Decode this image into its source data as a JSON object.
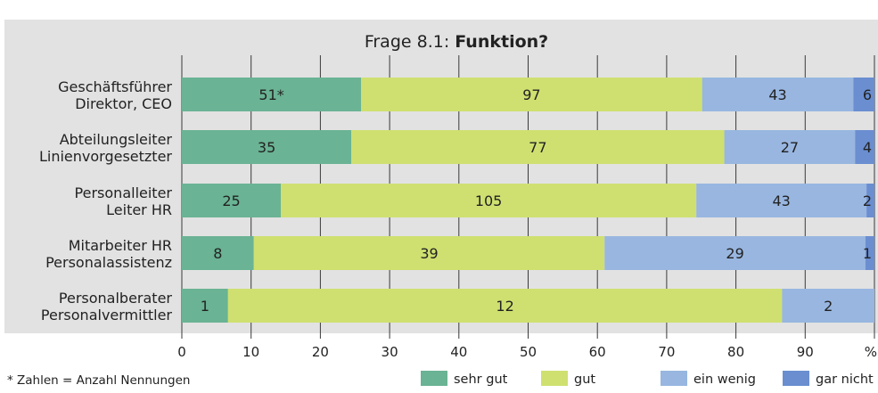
{
  "chart_data": {
    "type": "bar",
    "orientation": "horizontal",
    "stacked": "percent",
    "title_prefix": "Frage 8.1: ",
    "title_bold": "Funktion?",
    "categories": [
      [
        "Geschäftsführer",
        "Direktor, CEO"
      ],
      [
        "Abteilungsleiter",
        "Linienvorgesetzter"
      ],
      [
        "Personalleiter",
        "Leiter HR"
      ],
      [
        "Mitarbeiter HR",
        "Personalassistenz"
      ],
      [
        "Personalberater",
        "Personalvermittler"
      ]
    ],
    "series": [
      {
        "name": "sehr gut",
        "color": "#6ab394",
        "values": [
          51,
          35,
          25,
          8,
          1
        ],
        "labels": [
          "51*",
          "35",
          "25",
          "8",
          "1"
        ]
      },
      {
        "name": "gut",
        "color": "#cfe070",
        "values": [
          97,
          77,
          105,
          39,
          12
        ],
        "labels": [
          "97",
          "77",
          "105",
          "39",
          "12"
        ]
      },
      {
        "name": "ein wenig",
        "color": "#98b6e0",
        "values": [
          43,
          27,
          43,
          29,
          2
        ],
        "labels": [
          "43",
          "27",
          "43",
          "29",
          "2"
        ]
      },
      {
        "name": "gar nicht",
        "color": "#6a8ed0",
        "values": [
          6,
          4,
          2,
          1,
          0
        ],
        "labels": [
          "6",
          "4",
          "2",
          "1",
          ""
        ]
      }
    ],
    "x_ticks": [
      "0",
      "10",
      "20",
      "30",
      "40",
      "50",
      "60",
      "70",
      "80",
      "90",
      "%"
    ],
    "xlim": [
      0,
      100
    ],
    "grid": true,
    "legend_position": "bottom-right",
    "footnote": "* Zahlen = Anzahl Nennungen"
  }
}
